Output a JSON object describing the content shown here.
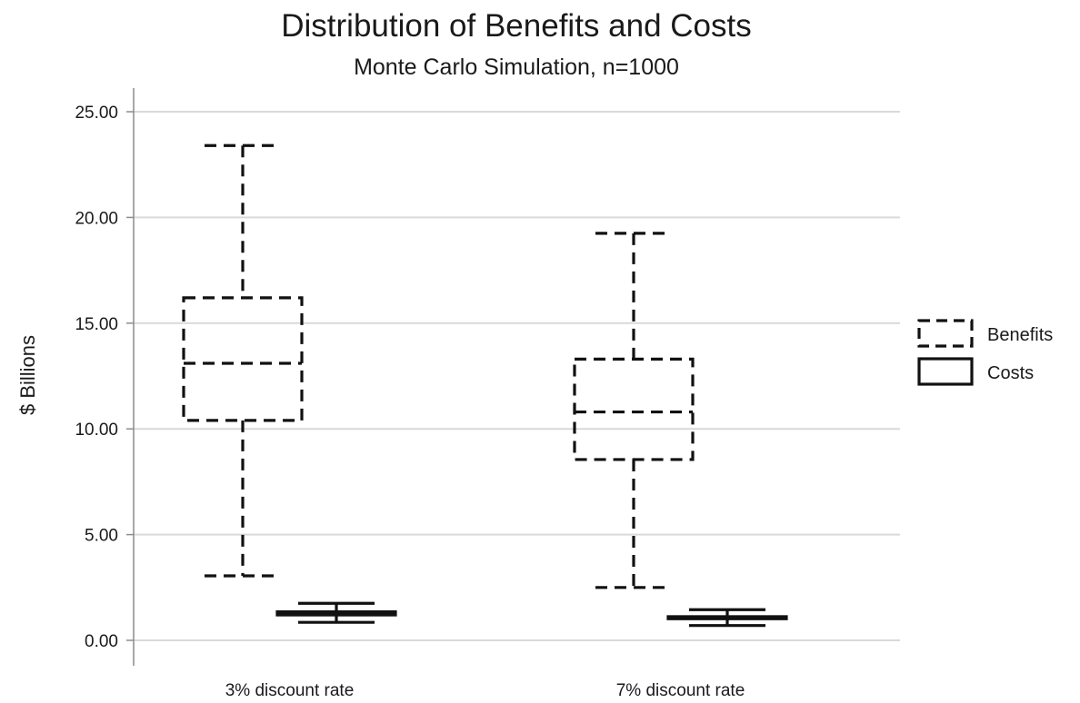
{
  "chart_data": {
    "type": "box",
    "title": "Distribution of Benefits and Costs",
    "subtitle": "Monte Carlo Simulation, n=1000",
    "ylabel": "$ Billions",
    "xlabel": "",
    "ylim": [
      0,
      25
    ],
    "yticks": [
      "0.00",
      "5.00",
      "10.00",
      "15.00",
      "20.00",
      "25.00"
    ],
    "ytick_values": [
      0,
      5,
      10,
      15,
      20,
      25
    ],
    "grid": true,
    "legend_position": "right",
    "categories": [
      "3% discount rate",
      "7% discount rate"
    ],
    "series": [
      {
        "name": "Benefits",
        "line_style": "dashed",
        "boxes": [
          {
            "min": 3.05,
            "q1": 10.4,
            "median": 13.1,
            "q3": 16.2,
            "max": 23.4
          },
          {
            "min": 2.5,
            "q1": 8.55,
            "median": 10.8,
            "q3": 13.3,
            "max": 19.25
          }
        ]
      },
      {
        "name": "Costs",
        "line_style": "solid",
        "boxes": [
          {
            "min": 0.85,
            "q1": 1.2,
            "median": 1.25,
            "q3": 1.35,
            "max": 1.75
          },
          {
            "min": 0.7,
            "q1": 1.02,
            "median": 1.07,
            "q3": 1.12,
            "max": 1.45
          }
        ]
      }
    ]
  }
}
